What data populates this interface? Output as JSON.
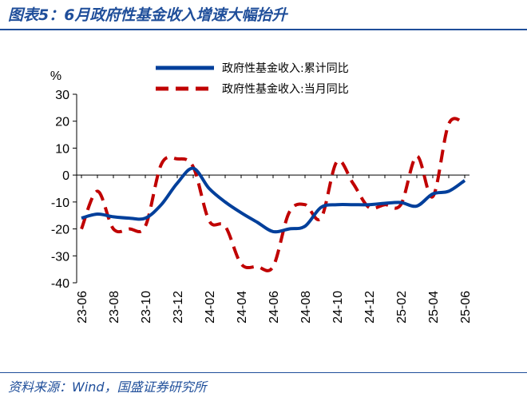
{
  "title": "图表5：6月政府性基金收入增速大幅抬升",
  "source": "资料来源：Wind，国盛证券研究所",
  "chart_data": {
    "type": "line",
    "ylabel": "%",
    "ylim": [
      -40,
      30
    ],
    "yticks": [
      30,
      20,
      10,
      0,
      -10,
      -20,
      -30,
      -40
    ],
    "x": [
      "23-06",
      "23-07",
      "23-08",
      "23-09",
      "23-10",
      "23-11",
      "23-12",
      "24-01",
      "24-02",
      "24-03",
      "24-04",
      "24-05",
      "24-06",
      "24-07",
      "24-08",
      "24-09",
      "24-10",
      "24-11",
      "24-12",
      "25-01",
      "25-02",
      "25-03",
      "25-04",
      "25-05",
      "25-06"
    ],
    "xtick_labels": [
      "23-06",
      "23-08",
      "23-10",
      "23-12",
      "24-02",
      "24-04",
      "24-06",
      "24-08",
      "24-10",
      "24-12",
      "25-02",
      "25-04",
      "25-06"
    ],
    "legend_position": "top-center",
    "grid": false,
    "series": [
      {
        "name": "政府性基金收入:累计同比",
        "color": "#003f9b",
        "style": "solid",
        "values": [
          -16,
          -14.5,
          -15.5,
          -16,
          -16,
          -11,
          -3,
          2.5,
          -5,
          -10,
          -14,
          -17.5,
          -21,
          -20,
          -19,
          -12,
          -11,
          -11,
          -11,
          -10.5,
          -10.2,
          -11.5,
          -7,
          -6,
          -2
        ]
      },
      {
        "name": "政府性基金收入:当月同比",
        "color": "#c00000",
        "style": "dashed",
        "values": [
          -20,
          -6,
          -20,
          -20,
          -19,
          4,
          6,
          3,
          -17,
          -19,
          -33,
          -34,
          -34,
          -14,
          -11,
          -16,
          5,
          -3,
          -12,
          -11,
          -11,
          7,
          -8,
          19,
          19
        ]
      }
    ]
  }
}
